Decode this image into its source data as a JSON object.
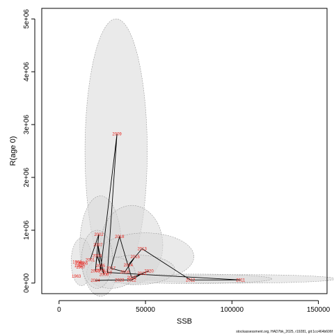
{
  "chart_data": {
    "type": "scatter",
    "xlabel": "SSB",
    "ylabel": "R(age 0)",
    "xlim": [
      -10000,
      155000
    ],
    "ylim": [
      -200000,
      5200000
    ],
    "x_ticks": [
      0,
      50000,
      100000,
      150000
    ],
    "x_tick_labels": [
      "0",
      "50000",
      "100000",
      "150000"
    ],
    "y_ticks": [
      0,
      1000000,
      2000000,
      3000000,
      4000000,
      5000000
    ],
    "y_tick_labels": [
      "0e+00",
      "1e+06",
      "2e+06",
      "3e+06",
      "4e+06",
      "5e+06"
    ],
    "grid": false,
    "credit": "stockassessment.org, HAD7bk_2025, r19281, git:1cc464b606f",
    "colors": {
      "labels": "#e8211a",
      "ellipse_fill": "#d9d9d9",
      "ellipse_edge": "#9a9a9a",
      "line": "#000000"
    },
    "points": [
      {
        "year": "1963",
        "x": 10000,
        "y": 130000
      },
      {
        "year": "1965",
        "x": 12000,
        "y": 380000
      },
      {
        "year": "1966",
        "x": 14000,
        "y": 370000
      },
      {
        "year": "1967",
        "x": 12500,
        "y": 300000
      },
      {
        "year": "1968",
        "x": 10500,
        "y": 400000
      },
      {
        "year": "1969",
        "x": 11500,
        "y": 330000
      },
      {
        "year": "2001",
        "x": 18000,
        "y": 440000
      },
      {
        "year": "2002",
        "x": 23000,
        "y": 920000
      },
      {
        "year": "2003",
        "x": 21000,
        "y": 230000
      },
      {
        "year": "2004",
        "x": 22000,
        "y": 520000
      },
      {
        "year": "2005",
        "x": 24000,
        "y": 330000
      },
      {
        "year": "2006",
        "x": 26000,
        "y": 160000
      },
      {
        "year": "2007",
        "x": 22500,
        "y": 720000
      },
      {
        "year": "2008",
        "x": 24000,
        "y": 240000
      },
      {
        "year": "2009",
        "x": 33500,
        "y": 2820000
      },
      {
        "year": "2010",
        "x": 28000,
        "y": 200000
      },
      {
        "year": "2011",
        "x": 105000,
        "y": 60000
      },
      {
        "year": "2012",
        "x": 76000,
        "y": 60000
      },
      {
        "year": "2013",
        "x": 48000,
        "y": 650000
      },
      {
        "year": "2014",
        "x": 40000,
        "y": 340000
      },
      {
        "year": "2015",
        "x": 44000,
        "y": 500000
      },
      {
        "year": "2016",
        "x": 38000,
        "y": 210000
      },
      {
        "year": "2017",
        "x": 30000,
        "y": 280000
      },
      {
        "year": "2018",
        "x": 35000,
        "y": 880000
      },
      {
        "year": "2019",
        "x": 42000,
        "y": 100000
      },
      {
        "year": "2020",
        "x": 52000,
        "y": 230000
      },
      {
        "year": "2021",
        "x": 48000,
        "y": 180000
      },
      {
        "year": "2022",
        "x": 42000,
        "y": 60000
      },
      {
        "year": "2023",
        "x": 35000,
        "y": 60000
      },
      {
        "year": "2024",
        "x": 21000,
        "y": 50000
      }
    ],
    "path_order": [
      "2001",
      "2002",
      "2003",
      "2004",
      "2005",
      "2006",
      "2007",
      "2008",
      "2009",
      "2010",
      "2011",
      "2012",
      "2013",
      "2014",
      "2015",
      "2016",
      "2017",
      "2018",
      "2019",
      "2020",
      "2021",
      "2022",
      "2023",
      "2024"
    ],
    "ellipses": [
      {
        "cx": 33000,
        "cy": 2500000,
        "rx": 18000,
        "ry": 2500000
      },
      {
        "cx": 24000,
        "cy": 700000,
        "rx": 12000,
        "ry": 950000
      },
      {
        "cx": 42000,
        "cy": 720000,
        "rx": 18000,
        "ry": 750000
      },
      {
        "cx": 50000,
        "cy": 500000,
        "rx": 28000,
        "ry": 450000
      },
      {
        "cx": 105000,
        "cy": 80000,
        "rx": 55000,
        "ry": 80000
      },
      {
        "cx": 78000,
        "cy": 80000,
        "rx": 45000,
        "ry": 90000
      },
      {
        "cx": 13000,
        "cy": 400000,
        "rx": 6000,
        "ry": 450000
      },
      {
        "cx": 45000,
        "cy": 250000,
        "rx": 22000,
        "ry": 280000
      },
      {
        "cx": 30000,
        "cy": 200000,
        "rx": 14000,
        "ry": 300000
      },
      {
        "cx": 22000,
        "cy": 450000,
        "rx": 9000,
        "ry": 550000
      }
    ]
  }
}
